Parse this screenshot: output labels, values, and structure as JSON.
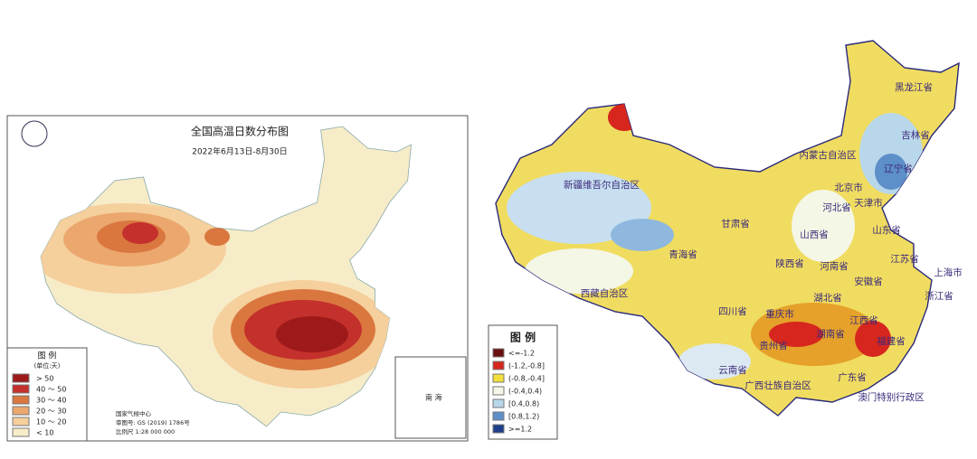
{
  "left_map": {
    "title": "全国高温日数分布图",
    "subtitle": "2022年6月13日-8月30日",
    "legend": {
      "title": "图 例",
      "unit": "(单位:天)",
      "items": [
        {
          "label": "> 50",
          "color": "#9e1a1a"
        },
        {
          "label": "40 ～ 50",
          "color": "#c4302b"
        },
        {
          "label": "30 ～ 40",
          "color": "#d9773f"
        },
        {
          "label": "20 ～ 30",
          "color": "#eba76e"
        },
        {
          "label": "10 ～ 20",
          "color": "#f5cf9c"
        },
        {
          "label": "< 10",
          "color": "#f7ecc8"
        }
      ]
    },
    "credits": [
      "国家气候中心",
      "审图号: GS (2019) 1786号",
      "比例尺 1:28 000 000"
    ],
    "inset": "南 海"
  },
  "right_map": {
    "labels": [
      "黑龙江省",
      "吉林省",
      "辽宁省",
      "内蒙古自治区",
      "新疆维吾尔自治区",
      "北京市",
      "天津市",
      "河北省",
      "甘肃省",
      "山西省",
      "山东省",
      "青海省",
      "陕西省",
      "河南省",
      "江苏省",
      "上海市",
      "安徽省",
      "西藏自治区",
      "四川省",
      "湖北省",
      "浙江省",
      "重庆市",
      "江西省",
      "贵州省",
      "湖南省",
      "福建省",
      "云南省",
      "广西壮族自治区",
      "广东省",
      "澳门特别行政区"
    ],
    "legend": {
      "title": "图 例",
      "items": [
        {
          "label": "<=-1.2",
          "color": "#6b0f0f"
        },
        {
          "label": "(-1.2,-0.8]",
          "color": "#d7261e"
        },
        {
          "label": "(-0.8,-0.4]",
          "color": "#f3df3c"
        },
        {
          "label": "(-0.4,0.4)",
          "color": "#f4f6e6"
        },
        {
          "label": "[0.4,0.8)",
          "color": "#b9d7ea"
        },
        {
          "label": "[0.8,1.2)",
          "color": "#5d8fc9"
        },
        {
          "label": ">=1.2",
          "color": "#1f3f8a"
        }
      ]
    }
  }
}
